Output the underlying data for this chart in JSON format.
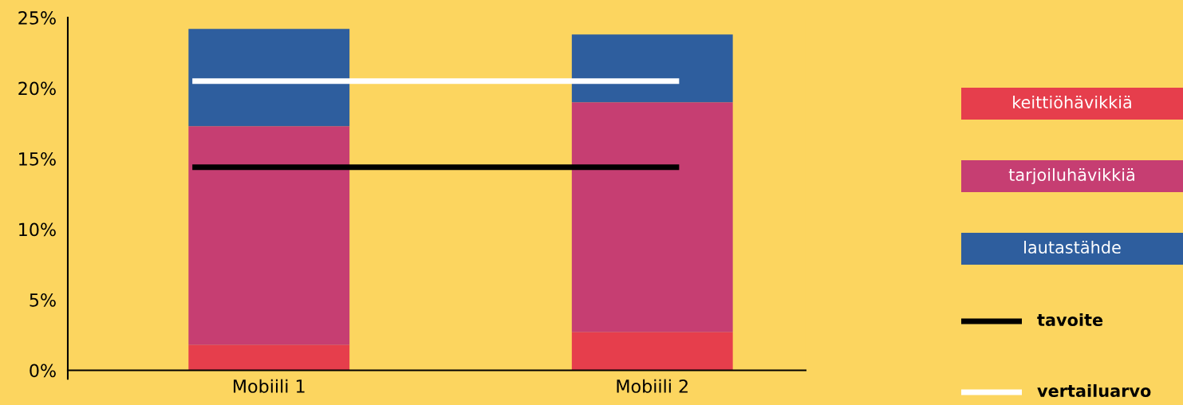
{
  "chart_data": {
    "type": "bar",
    "stacked": true,
    "categories": [
      "Mobiili 1",
      "Mobiili 2"
    ],
    "series": [
      {
        "name": "keittiöhävikkiä",
        "color": "#e63e4c",
        "values": [
          1.8,
          2.7
        ]
      },
      {
        "name": "tarjoiluhävikkiä",
        "color": "#c63e72",
        "values": [
          15.5,
          16.3
        ]
      },
      {
        "name": "lautastähde",
        "color": "#2e5e9e",
        "values": [
          6.9,
          4.8
        ]
      }
    ],
    "ref_lines": [
      {
        "axis": "y",
        "value": 14.4,
        "label": "tavoite",
        "color": "#000000"
      },
      {
        "axis": "y",
        "value": 20.5,
        "label": "vertailuarvo",
        "color": "#ffffff"
      }
    ],
    "ylim": [
      0,
      25
    ],
    "yticks": [
      {
        "value": 0,
        "label": "0%"
      },
      {
        "value": 5,
        "label": "5%"
      },
      {
        "value": 10,
        "label": "10%"
      },
      {
        "value": 15,
        "label": "15%"
      },
      {
        "value": 20,
        "label": "20%"
      },
      {
        "value": 25,
        "label": "25%"
      }
    ],
    "grid": false,
    "legend": "right"
  }
}
